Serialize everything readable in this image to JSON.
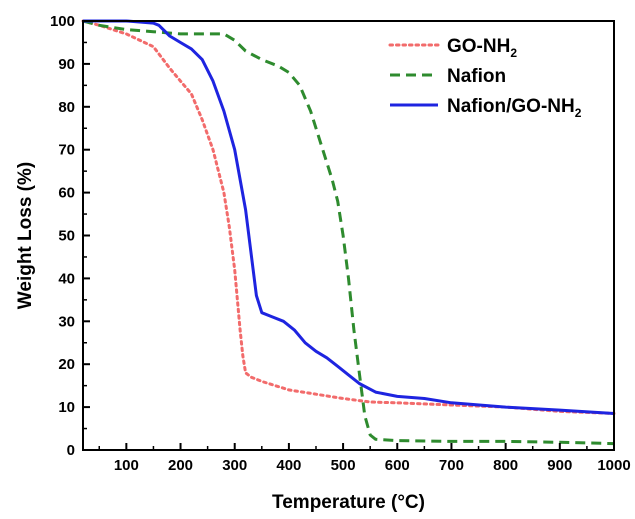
{
  "chart_data": {
    "type": "line",
    "xlabel": "Temperature (°C)",
    "ylabel": "Weight Loss (%)",
    "xlim": [
      20,
      1000
    ],
    "ylim": [
      0,
      100
    ],
    "x_ticks": [
      100,
      200,
      300,
      400,
      500,
      600,
      700,
      800,
      900,
      1000
    ],
    "y_ticks": [
      0,
      10,
      20,
      30,
      40,
      50,
      60,
      70,
      80,
      90,
      100
    ],
    "grid": false,
    "legend_position": "top-right",
    "series": [
      {
        "name": "GO-NH2",
        "legend_main": "GO-NH",
        "legend_sub": "2",
        "color": "#f26b6b",
        "style": "dotted",
        "points": [
          [
            20,
            100
          ],
          [
            50,
            99
          ],
          [
            100,
            97
          ],
          [
            150,
            94
          ],
          [
            180,
            89
          ],
          [
            200,
            86
          ],
          [
            220,
            83
          ],
          [
            240,
            77
          ],
          [
            260,
            70
          ],
          [
            280,
            60
          ],
          [
            290,
            52
          ],
          [
            300,
            42
          ],
          [
            305,
            35
          ],
          [
            310,
            28
          ],
          [
            315,
            22
          ],
          [
            320,
            18
          ],
          [
            330,
            17
          ],
          [
            350,
            16
          ],
          [
            400,
            14
          ],
          [
            450,
            13
          ],
          [
            500,
            12
          ],
          [
            550,
            11.2
          ],
          [
            600,
            11
          ],
          [
            700,
            10.5
          ],
          [
            800,
            10
          ],
          [
            900,
            9
          ],
          [
            1000,
            8.5
          ]
        ]
      },
      {
        "name": "Nafion",
        "legend_main": "Nafion",
        "legend_sub": "",
        "color": "#2e8b2e",
        "style": "dashed",
        "points": [
          [
            20,
            100
          ],
          [
            50,
            99
          ],
          [
            100,
            98
          ],
          [
            150,
            97.5
          ],
          [
            200,
            97
          ],
          [
            250,
            97
          ],
          [
            280,
            97
          ],
          [
            300,
            95.5
          ],
          [
            320,
            93
          ],
          [
            350,
            91
          ],
          [
            380,
            89.5
          ],
          [
            400,
            88
          ],
          [
            420,
            85
          ],
          [
            440,
            79
          ],
          [
            460,
            71
          ],
          [
            480,
            63
          ],
          [
            490,
            58
          ],
          [
            500,
            50
          ],
          [
            510,
            40
          ],
          [
            520,
            28
          ],
          [
            530,
            18
          ],
          [
            540,
            8
          ],
          [
            550,
            3.5
          ],
          [
            560,
            2.5
          ],
          [
            600,
            2.2
          ],
          [
            700,
            2
          ],
          [
            800,
            2
          ],
          [
            900,
            1.8
          ],
          [
            1000,
            1.5
          ]
        ]
      },
      {
        "name": "Nafion/GO-NH2",
        "legend_main": "Nafion/GO-NH",
        "legend_sub": "2",
        "color": "#1e24e0",
        "style": "solid",
        "points": [
          [
            20,
            100
          ],
          [
            100,
            100
          ],
          [
            150,
            99.5
          ],
          [
            160,
            99
          ],
          [
            180,
            96.5
          ],
          [
            200,
            95
          ],
          [
            220,
            93.5
          ],
          [
            240,
            91
          ],
          [
            260,
            86
          ],
          [
            280,
            79
          ],
          [
            300,
            70
          ],
          [
            320,
            56
          ],
          [
            330,
            46
          ],
          [
            340,
            36
          ],
          [
            350,
            32
          ],
          [
            370,
            31
          ],
          [
            390,
            30
          ],
          [
            410,
            28
          ],
          [
            430,
            25
          ],
          [
            450,
            23
          ],
          [
            470,
            21.5
          ],
          [
            490,
            19.5
          ],
          [
            510,
            17.5
          ],
          [
            530,
            15.5
          ],
          [
            560,
            13.5
          ],
          [
            600,
            12.5
          ],
          [
            650,
            12
          ],
          [
            700,
            11
          ],
          [
            800,
            10
          ],
          [
            900,
            9.3
          ],
          [
            1000,
            8.5
          ]
        ]
      }
    ]
  }
}
